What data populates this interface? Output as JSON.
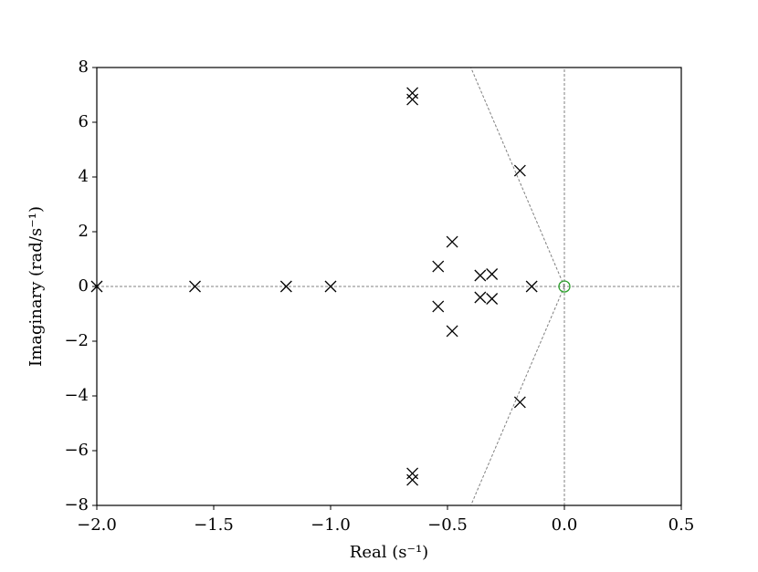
{
  "chart_data": {
    "type": "scatter",
    "xlabel": "Real (s⁻¹)",
    "ylabel": "Imaginary (rad/s⁻¹)",
    "xlim": [
      -2.0,
      0.5
    ],
    "ylim": [
      -8,
      8
    ],
    "xticks": [
      {
        "value": -2.0,
        "label": "−2.0"
      },
      {
        "value": -1.5,
        "label": "−1.5"
      },
      {
        "value": -1.0,
        "label": "−1.0"
      },
      {
        "value": -0.5,
        "label": "−0.5"
      },
      {
        "value": 0,
        "label": "0.0"
      },
      0.5
    ],
    "yticks": [
      {
        "value": -8,
        "label": "−8"
      },
      {
        "value": -6,
        "label": "−6"
      },
      {
        "value": -4,
        "label": "−4"
      },
      {
        "value": -2,
        "label": "−2"
      },
      0,
      2,
      4,
      6,
      8
    ],
    "series": [
      {
        "marker": "x",
        "color": "#000000",
        "x": [
          -2.0,
          -1.58,
          -1.19,
          -1.0,
          -0.65,
          -0.65,
          -0.65,
          -0.65,
          -0.19,
          -0.19,
          -0.48,
          -0.48,
          -0.54,
          -0.54,
          -0.36,
          -0.36,
          -0.31,
          -0.31,
          -0.14
        ],
        "y": [
          0,
          0,
          0,
          0,
          7.07,
          6.83,
          -6.83,
          -7.07,
          4.23,
          -4.23,
          1.63,
          -1.63,
          0.73,
          -0.73,
          0.4,
          -0.4,
          0.45,
          -0.45,
          0
        ]
      },
      {
        "marker": "o",
        "color": "#2ca02c",
        "x": [
          0
        ],
        "y": [
          0
        ]
      }
    ],
    "guide_lines": [
      {
        "x": [
          -2.0,
          0.5
        ],
        "y": [
          0,
          0
        ]
      },
      {
        "x": [
          0,
          0
        ],
        "y": [
          -8,
          8
        ]
      },
      {
        "x": [
          0,
          -0.4
        ],
        "y": [
          0,
          8
        ]
      },
      {
        "x": [
          0,
          -0.4
        ],
        "y": [
          0,
          -8
        ]
      }
    ],
    "guide_color": "#808080"
  }
}
